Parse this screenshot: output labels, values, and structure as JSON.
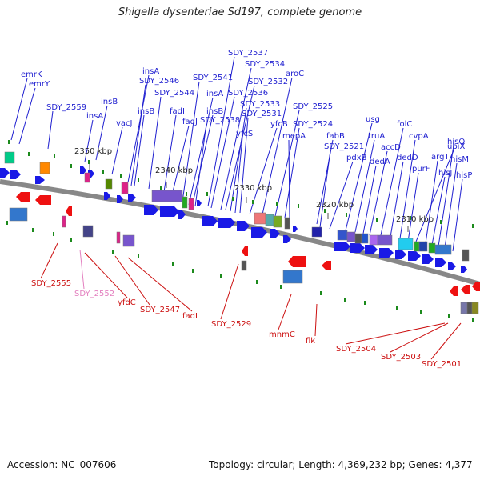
{
  "title": "Shigella dysenteriae Sd197, complete genome",
  "footer": {
    "accession_label": "Accession:",
    "accession": "NC_007606",
    "topology_label": "Topology:",
    "topology": "circular",
    "length_label": "Length:",
    "length": "4,369,232 bp",
    "genes_label": "Genes:",
    "genes": "4,377"
  },
  "colors": {
    "forward_label": "#1f1fd0",
    "reverse_label": "#cc1010",
    "pink_label": "#e37fbf",
    "forward_gene": "#1a1ae6",
    "reverse_gene": "#ee1111",
    "backbone": "#888888",
    "tick_mark": "#1c8a1c"
  },
  "kbp_markers": [
    {
      "label": "2350 kbp"
    },
    {
      "label": "2340 kbp"
    },
    {
      "label": "2330 kbp"
    },
    {
      "label": "2320 kbp"
    },
    {
      "label": "2310 kbp"
    }
  ],
  "forward_labels": [
    {
      "text": "emrK"
    },
    {
      "text": "emrY"
    },
    {
      "text": "SDY_2559"
    },
    {
      "text": "insA"
    },
    {
      "text": "insB"
    },
    {
      "text": "vacJ"
    },
    {
      "text": "insA"
    },
    {
      "text": "SDY_2546"
    },
    {
      "text": "insB"
    },
    {
      "text": "SDY_2544"
    },
    {
      "text": "fadI"
    },
    {
      "text": "fadJ"
    },
    {
      "text": "SDY_2541"
    },
    {
      "text": "insA"
    },
    {
      "text": "insB"
    },
    {
      "text": "SDY_2538"
    },
    {
      "text": "SDY_2537"
    },
    {
      "text": "SDY_2536"
    },
    {
      "text": "SDY_2534"
    },
    {
      "text": "SDY_2532"
    },
    {
      "text": "SDY_2533"
    },
    {
      "text": "yfcS"
    },
    {
      "text": "SDY_2531"
    },
    {
      "text": "yfcB"
    },
    {
      "text": "aroC"
    },
    {
      "text": "SDY_2525"
    },
    {
      "text": "SDY_2524"
    },
    {
      "text": "mepA"
    },
    {
      "text": "fabB"
    },
    {
      "text": "SDY_2521"
    },
    {
      "text": "pdxB"
    },
    {
      "text": "usg"
    },
    {
      "text": "truA"
    },
    {
      "text": "dedA"
    },
    {
      "text": "accD"
    },
    {
      "text": "folC"
    },
    {
      "text": "dedD"
    },
    {
      "text": "cvpA"
    },
    {
      "text": "purF"
    },
    {
      "text": "ubiX"
    },
    {
      "text": "argT"
    },
    {
      "text": "hisJ"
    },
    {
      "text": "hisQ"
    },
    {
      "text": "hisM"
    },
    {
      "text": "hisP"
    }
  ],
  "reverse_labels": [
    {
      "text": "SDY_2555"
    },
    {
      "text": "SDY_2552"
    },
    {
      "text": "yfdC"
    },
    {
      "text": "SDY_2547"
    },
    {
      "text": "fadL"
    },
    {
      "text": "SDY_2529"
    },
    {
      "text": "mnmC"
    },
    {
      "text": "flk"
    },
    {
      "text": "SDY_2504"
    },
    {
      "text": "SDY_2503"
    },
    {
      "text": "SDY_2501"
    }
  ]
}
